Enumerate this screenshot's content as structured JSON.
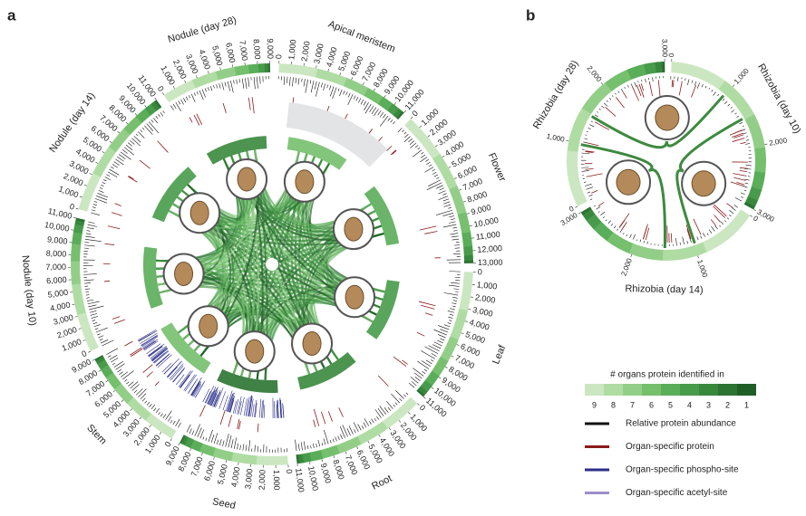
{
  "panel_a": {
    "label": "a",
    "segments": [
      {
        "name": "Apical meristem",
        "ticks": [
          "0",
          "1,000",
          "2,000",
          "3,000",
          "4,000",
          "5,000",
          "6,000",
          "7,000",
          "8,000",
          "9,000",
          "10,000",
          "11,000"
        ]
      },
      {
        "name": "Flower",
        "ticks": [
          "0",
          "1,000",
          "2,000",
          "3,000",
          "4,000",
          "5,000",
          "6,000",
          "7,000",
          "8,000",
          "9,000",
          "10,000",
          "11,000",
          "12,000",
          "13,000"
        ]
      },
      {
        "name": "Leaf",
        "ticks": [
          "0",
          "1,000",
          "2,000",
          "3,000",
          "4,000",
          "5,000",
          "6,000",
          "7,000",
          "8,000",
          "9,000",
          "10,000",
          "11,000"
        ]
      },
      {
        "name": "Root",
        "ticks": [
          "0",
          "1,000",
          "2,000",
          "3,000",
          "4,000",
          "5,000",
          "6,000",
          "7,000",
          "8,000",
          "9,000",
          "10,000",
          "11,000"
        ]
      },
      {
        "name": "Seed",
        "ticks": [
          "0",
          "1,000",
          "2,000",
          "3,000",
          "4,000",
          "5,000",
          "6,000",
          "7,000",
          "8,000",
          "9,000"
        ]
      },
      {
        "name": "Stem",
        "ticks": [
          "0",
          "1,000",
          "2,000",
          "3,000",
          "4,000",
          "5,000",
          "6,000",
          "7,000",
          "8,000",
          "9,000"
        ]
      },
      {
        "name": "Nodule (day 10)",
        "ticks": [
          "0",
          "1,000",
          "2,000",
          "3,000",
          "4,000",
          "5,000",
          "6,000",
          "7,000",
          "8,000",
          "9,000",
          "10,000",
          "11,000"
        ]
      },
      {
        "name": "Nodule (day 14)",
        "ticks": [
          "0",
          "1,000",
          "2,000",
          "3,000",
          "4,000",
          "5,000",
          "6,000",
          "7,000",
          "8,000",
          "9,000",
          "10,000",
          "11,000"
        ]
      },
      {
        "name": "Nodule (day 28)",
        "ticks": [
          "0",
          "1,000",
          "2,000",
          "3,000",
          "4,000",
          "5,000",
          "6,000",
          "7,000",
          "8,000",
          "9,000"
        ]
      }
    ]
  },
  "panel_b": {
    "label": "b",
    "segments": [
      {
        "name": "Rhizobia (day 10)",
        "ticks": [
          "0",
          "1,000",
          "2,000",
          "3,000"
        ]
      },
      {
        "name": "Rhizobia (day 14)",
        "ticks": [
          "0",
          "1,000",
          "2,000",
          "3,000"
        ]
      },
      {
        "name": "Rhizobia (day 28)",
        "ticks": [
          "0",
          "1,000",
          "2,000",
          "3,000"
        ]
      }
    ]
  },
  "legend": {
    "title": "# organs protein identified in",
    "scale": [
      "9",
      "8",
      "7",
      "6",
      "5",
      "4",
      "3",
      "2",
      "1"
    ],
    "items": [
      "Relative protein abundance",
      "Organ-specific protein",
      "Organ-specific phospho-site",
      "Organ-specific acetyl-site"
    ]
  }
}
